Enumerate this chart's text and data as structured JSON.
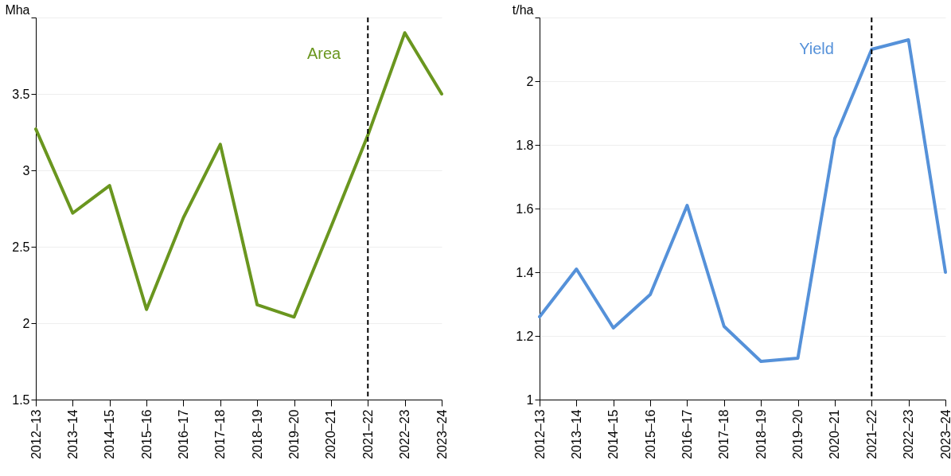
{
  "chart_data": [
    {
      "type": "line",
      "ylabel": "Mha",
      "categories": [
        "2012–13",
        "2013–14",
        "2014–15",
        "2015–16",
        "2016–17",
        "2017–18",
        "2018–19",
        "2019–20",
        "2020–21",
        "2021–22",
        "2022–23",
        "2023–24"
      ],
      "series": [
        {
          "name": "Area",
          "color": "#6a961f",
          "values": [
            3.27,
            2.72,
            2.9,
            2.09,
            2.69,
            3.17,
            2.12,
            2.04,
            2.63,
            3.23,
            3.9,
            3.5
          ]
        }
      ],
      "ylim": [
        1.5,
        4
      ],
      "yticks": [
        1.5,
        2,
        2.5,
        3,
        3.5,
        {
          "value": 4,
          "label": null
        }
      ],
      "grid": "y",
      "marker": "none",
      "line_style": "solid",
      "ref_lines": [
        {
          "axis": "x",
          "value": "2021–22",
          "color": "#000000",
          "line_style": "dashed"
        }
      ]
    },
    {
      "type": "line",
      "ylabel": "t/ha",
      "categories": [
        "2012–13",
        "2013–14",
        "2014–15",
        "2015–16",
        "2016–17",
        "2017–18",
        "2018–19",
        "2019–20",
        "2020–21",
        "2021–22",
        "2022–23",
        "2023–24"
      ],
      "series": [
        {
          "name": "Yield",
          "color": "#5591d9",
          "values": [
            1.26,
            1.41,
            1.225,
            1.33,
            1.61,
            1.23,
            1.12,
            1.13,
            1.82,
            2.1,
            2.13,
            1.4
          ]
        }
      ],
      "ylim": [
        1,
        2.2
      ],
      "yticks": [
        1,
        1.2,
        1.4,
        1.6,
        1.8,
        2,
        {
          "value": 2.2,
          "label": null
        }
      ],
      "grid": "y",
      "marker": "none",
      "line_style": "solid",
      "ref_lines": [
        {
          "axis": "x",
          "value": "2021–22",
          "color": "#000000",
          "line_style": "dashed"
        }
      ]
    }
  ]
}
